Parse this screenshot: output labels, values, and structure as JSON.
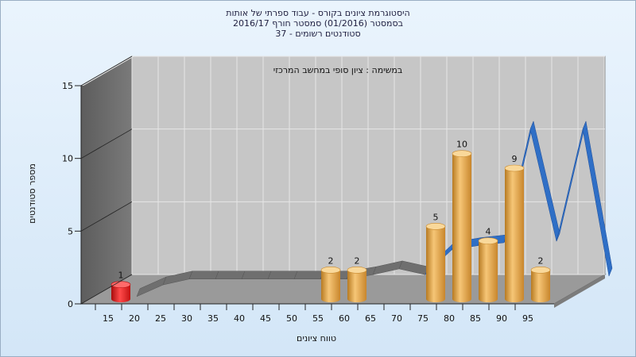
{
  "title_lines": [
    "היסטוגרמת ציונים בקורס - עבוד ספרתי של אותות",
    "בסמסטר  (01/2016)  סמסטר חורף 2016/17",
    "סטודנטים רשומים - 37"
  ],
  "chart_data": {
    "type": "bar",
    "subtitle": "במשימה : ציון סופי במחשב המרכזי",
    "xlabel": "טווח ציונים",
    "ylabel": "מספר סטודנטים",
    "ylim": [
      0,
      15
    ],
    "y_ticks": [
      0,
      5,
      10,
      15
    ],
    "categories": [
      "15",
      "20",
      "25",
      "30",
      "35",
      "40",
      "45",
      "50",
      "55",
      "60",
      "65",
      "70",
      "75",
      "80",
      "85",
      "90",
      "95"
    ],
    "values": [
      1,
      0,
      0,
      0,
      0,
      0,
      0,
      0,
      2,
      2,
      0,
      0,
      5,
      10,
      4,
      9,
      2
    ],
    "bar_colors": {
      "first": "#e01818",
      "default": "#e3a844"
    },
    "distribution_curve": [
      0,
      0.8,
      1.2,
      1.2,
      1.2,
      1.2,
      1.2,
      1.2,
      1.2,
      1.5,
      1.9,
      1.5,
      3.2,
      3.5,
      3.7,
      11.5,
      3.8,
      11.5,
      1.4
    ],
    "curve_colors": {
      "low": "#6f6f6f",
      "high": "#2f6fc6"
    },
    "grid": true,
    "style": "3d"
  }
}
